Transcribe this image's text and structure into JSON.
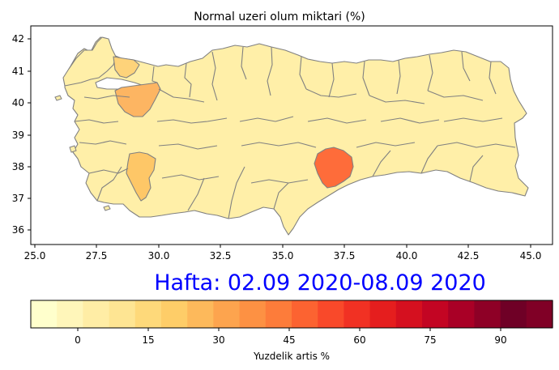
{
  "title": "Normal uzeri olum miktari (%)",
  "week_label": "Hafta: 02.09 2020-08.09 2020",
  "map": {
    "x_ticks": [
      "25.0",
      "27.5",
      "30.0",
      "32.5",
      "35.0",
      "37.5",
      "40.0",
      "42.5",
      "45.0"
    ],
    "y_ticks": [
      "36",
      "37",
      "38",
      "39",
      "40",
      "41",
      "42"
    ],
    "xlim": [
      25.0,
      45.5
    ],
    "ylim": [
      35.5,
      42.5
    ],
    "base_fill": "#ffefa8",
    "edge_color": "#808080",
    "highlights": [
      {
        "region": "northwest-marmara-strip",
        "fill": "#fed37a"
      },
      {
        "region": "bursa-bilecik-area",
        "fill": "#fdb562"
      },
      {
        "region": "denizli-area",
        "fill": "#fec767"
      },
      {
        "region": "adiyaman-malatya-area",
        "fill": "#fe6c3a"
      }
    ]
  },
  "colorbar": {
    "label": "Yuzdelik artis %",
    "ticks": [
      "0",
      "15",
      "30",
      "45",
      "60",
      "75",
      "90"
    ],
    "colors": [
      "#ffffcc",
      "#fff6ba",
      "#ffeda5",
      "#fee593",
      "#fed97a",
      "#fecd68",
      "#fdb95b",
      "#fda44e",
      "#fd9143",
      "#fd7c3a",
      "#fc6331",
      "#f9492a",
      "#f13123",
      "#e51e1e",
      "#d5101f",
      "#c30523",
      "#a90026",
      "#8e0026",
      "#6f0026",
      "#800026"
    ]
  }
}
